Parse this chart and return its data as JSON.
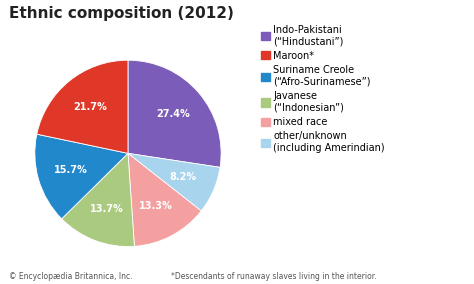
{
  "title": "Ethnic composition (2012)",
  "slices": [
    {
      "label": "Indo-Pakistani\n(“Hindustani”)",
      "value": 27.4,
      "color": "#7B5CB8",
      "pct": "27.4%"
    },
    {
      "label": "other/unknown\n(including Amerindian)",
      "value": 8.2,
      "color": "#A8D4EE",
      "pct": "8.2%"
    },
    {
      "label": "mixed race",
      "value": 13.3,
      "color": "#F4A0A0",
      "pct": "13.3%"
    },
    {
      "label": "Javanese\n(“Indonesian”)",
      "value": 13.7,
      "color": "#AACA80",
      "pct": "13.7%"
    },
    {
      "label": "Suriname Creole\n(“Afro-Surinamese”)",
      "value": 15.7,
      "color": "#2288CC",
      "pct": "15.7%"
    },
    {
      "label": "Maroon*",
      "value": 21.7,
      "color": "#E03828",
      "pct": "21.7%"
    }
  ],
  "legend_order": [
    0,
    5,
    4,
    3,
    2,
    1
  ],
  "footnote_left": "© Encyclopædia Britannica, Inc.",
  "footnote_right": "*Descendants of runaway slaves living in the interior.",
  "bg_color": "#FFFFFF",
  "title_fontsize": 11,
  "label_fontsize": 7,
  "legend_fontsize": 7
}
